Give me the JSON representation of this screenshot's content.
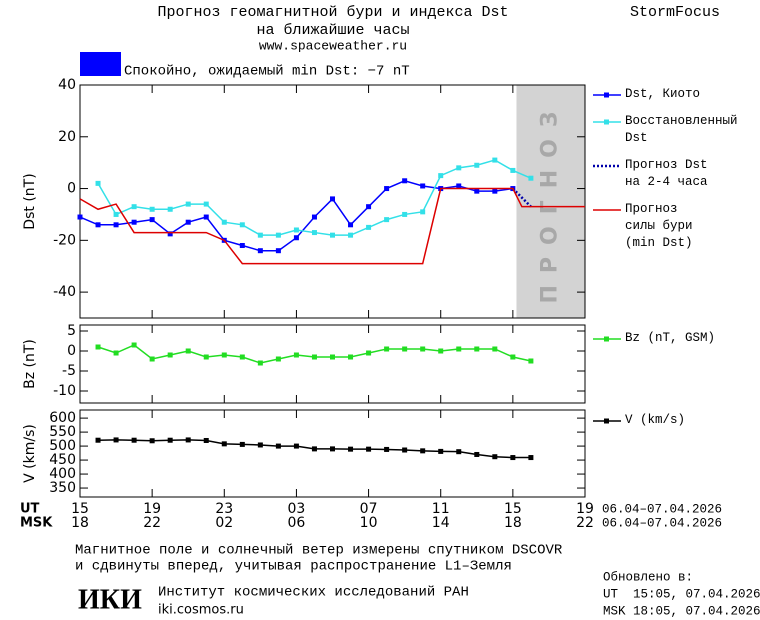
{
  "header": {
    "title_lines": [
      "Прогноз геомагнитной бури и индекса Dst",
      "на ближайшие часы",
      "www.spaceweather.ru"
    ],
    "brand": "StormFocus"
  },
  "status": {
    "text": "Спокойно, ожидаемый min Dst: −7 nT",
    "color": "#0000ff"
  },
  "chart_data": [
    {
      "type": "line",
      "ylabel": "Dst (nT)",
      "xlim": [
        0,
        28
      ],
      "ylim": [
        -50,
        40
      ],
      "yticks": [
        -40,
        -20,
        0,
        20,
        40
      ],
      "forecast_span": [
        24.2,
        28
      ],
      "forecast_label": "ПРОГНОЗ",
      "series": [
        {
          "name": "Dst, Киото",
          "color": "#0000ff",
          "style": "solid",
          "markers": true,
          "x": [
            0,
            1,
            2,
            3,
            4,
            5,
            6,
            7,
            8,
            9,
            10,
            11,
            12,
            13,
            14,
            15,
            16,
            17,
            18,
            19,
            20,
            21,
            22,
            23,
            24
          ],
          "values": [
            -11,
            -14,
            -14,
            -13,
            -12,
            -17.5,
            -13,
            -11,
            -20,
            -22,
            -24,
            -24,
            -19,
            -11,
            -4,
            -14,
            -7,
            0,
            3,
            1,
            0,
            1,
            -1,
            -1,
            0
          ]
        },
        {
          "name": "Восстановленный\nDst",
          "color": "#33e0e8",
          "style": "solid",
          "markers": true,
          "x": [
            1,
            2,
            3,
            4,
            5,
            6,
            7,
            8,
            9,
            10,
            11,
            12,
            13,
            14,
            15,
            16,
            17,
            18,
            19,
            20,
            21,
            22,
            23,
            24,
            25
          ],
          "values": [
            2,
            -10,
            -7,
            -8,
            -8,
            -6,
            -6,
            -13,
            -14,
            -18,
            -18,
            -16,
            -17,
            -18,
            -18,
            -15,
            -12,
            -10,
            -9,
            5,
            8,
            9,
            11,
            7,
            4
          ]
        },
        {
          "name": "Прогноз Dst\nна 2-4 часа",
          "color": "#0000aa",
          "style": "dotted",
          "markers": false,
          "x": [
            24,
            25
          ],
          "values": [
            0,
            -7
          ]
        },
        {
          "name": "Прогноз\nсилы бури\n(min Dst)",
          "color": "#dd0000",
          "style": "solid",
          "markers": false,
          "x": [
            0,
            1,
            2,
            3,
            7,
            8,
            9,
            19,
            20,
            24,
            24.5,
            28
          ],
          "values": [
            -4,
            -8,
            -6,
            -17,
            -17,
            -20,
            -29,
            -29,
            0,
            0,
            -7,
            -7
          ]
        }
      ]
    },
    {
      "type": "line",
      "ylabel": "Bz (nT)",
      "xlim": [
        0,
        28
      ],
      "ylim": [
        -13,
        6.5
      ],
      "yticks": [
        -10,
        -5,
        0,
        5
      ],
      "series": [
        {
          "name": "Bz (nT, GSM)",
          "color": "#22dd22",
          "style": "solid",
          "markers": true,
          "x": [
            1,
            2,
            3,
            4,
            5,
            6,
            7,
            8,
            9,
            10,
            11,
            12,
            13,
            14,
            15,
            16,
            17,
            18,
            19,
            20,
            21,
            22,
            23,
            24,
            25
          ],
          "values": [
            1,
            -0.5,
            1.5,
            -2,
            -1,
            0,
            -1.5,
            -1,
            -1.5,
            -3,
            -2,
            -1,
            -1.5,
            -1.5,
            -1.5,
            -0.5,
            0.5,
            0.5,
            0.5,
            0,
            0.5,
            0.5,
            0.5,
            -1.5,
            -2.5
          ]
        }
      ]
    },
    {
      "type": "line",
      "ylabel": "V (km/s)",
      "xlim": [
        0,
        28
      ],
      "ylim": [
        318,
        629
      ],
      "yticks": [
        350,
        400,
        450,
        500,
        550,
        600
      ],
      "xlabels": [
        "UT",
        "MSK"
      ],
      "date_range": [
        "06.04–07.04.2026",
        "06.04–07.04.2026"
      ],
      "xticks": [
        {
          "value": 0,
          "label": "15"
        },
        {
          "value": 4,
          "label": "19"
        },
        {
          "value": 8,
          "label": "23"
        },
        {
          "value": 12,
          "label": "03"
        },
        {
          "value": 16,
          "label": "07"
        },
        {
          "value": 20,
          "label": "11"
        },
        {
          "value": 24,
          "label": "15"
        },
        {
          "value": 28,
          "label": "19"
        }
      ],
      "xticks_msk": [
        {
          "value": 0,
          "label": "18"
        },
        {
          "value": 4,
          "label": "22"
        },
        {
          "value": 8,
          "label": "02"
        },
        {
          "value": 12,
          "label": "06"
        },
        {
          "value": 16,
          "label": "10"
        },
        {
          "value": 20,
          "label": "14"
        },
        {
          "value": 24,
          "label": "18"
        },
        {
          "value": 28,
          "label": "22"
        }
      ],
      "series": [
        {
          "name": "V (km/s)",
          "color": "#000000",
          "style": "solid",
          "markers": true,
          "x": [
            1,
            2,
            3,
            4,
            5,
            6,
            7,
            8,
            9,
            10,
            11,
            12,
            13,
            14,
            15,
            16,
            17,
            18,
            19,
            20,
            21,
            22,
            23,
            24,
            25
          ],
          "values": [
            521,
            522,
            521,
            519,
            521,
            522,
            520,
            508,
            506,
            504,
            500,
            500,
            490,
            490,
            489,
            489,
            488,
            486,
            483,
            481,
            480,
            470,
            462,
            459,
            459
          ]
        }
      ]
    }
  ],
  "footer": {
    "note_lines": [
      "Магнитное поле и солнечный ветер измерены спутником DSCOVR",
      "и сдвинуты вперед, учитывая распространение L1–Земля"
    ],
    "logo": "ИКИ",
    "institute": "Институт космических исследований РАН",
    "url": "iki.cosmos.ru",
    "updated_lines": [
      "Обновлено в:",
      "UT  15:05, 07.04.2026",
      "MSK 18:05, 07.04.2026"
    ]
  }
}
